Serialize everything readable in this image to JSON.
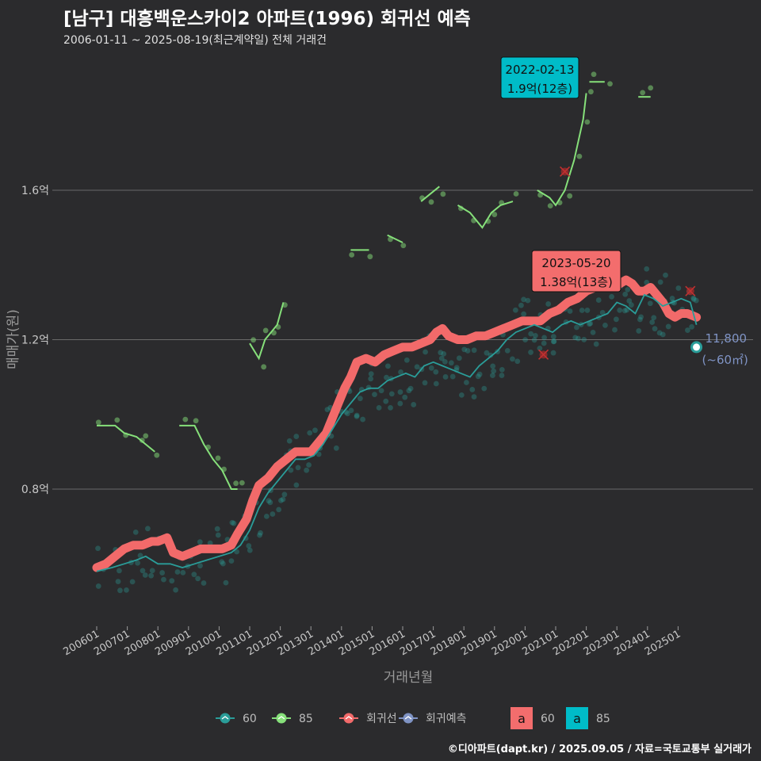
{
  "header": {
    "title": "[남구] 대흥백운스카이2 아파트(1996) 회귀선 예측",
    "subtitle": "2006-01-11 ~ 2025-08-19(최근계약일) 전체 거래건"
  },
  "footer": {
    "credit": "©디아파트(dapt.kr) / 2025.09.05 / 자료=국토교통부 실거래가"
  },
  "colors": {
    "s60": "#2a9d99",
    "s85": "#86e07a",
    "regression": "#f26a6a",
    "forecast": "#7f93c4",
    "box85": "#00bcc8",
    "box60": "#f36d6d"
  },
  "chart_data": {
    "type": "line",
    "title": "[남구] 대흥백운스카이2 아파트(1996) 회귀선 예측",
    "xlabel": "거래년월",
    "ylabel": "매매가(원)",
    "x_range": [
      2006.0,
      2025.9
    ],
    "ylim": [
      0.48,
      1.86
    ],
    "y_ticks": [
      {
        "v": 0.8,
        "label": "0.8억"
      },
      {
        "v": 1.2,
        "label": "1.2억"
      },
      {
        "v": 1.6,
        "label": "1.6억"
      }
    ],
    "x_ticks": [
      {
        "v": 2006.0,
        "label": "200601"
      },
      {
        "v": 2007.0,
        "label": "200701"
      },
      {
        "v": 2008.0,
        "label": "200801"
      },
      {
        "v": 2009.0,
        "label": "200901"
      },
      {
        "v": 2010.0,
        "label": "201001"
      },
      {
        "v": 2011.0,
        "label": "201101"
      },
      {
        "v": 2012.0,
        "label": "201201"
      },
      {
        "v": 2013.0,
        "label": "201301"
      },
      {
        "v": 2014.0,
        "label": "201401"
      },
      {
        "v": 2015.0,
        "label": "201501"
      },
      {
        "v": 2016.0,
        "label": "201601"
      },
      {
        "v": 2017.0,
        "label": "201701"
      },
      {
        "v": 2018.0,
        "label": "201801"
      },
      {
        "v": 2019.0,
        "label": "201901"
      },
      {
        "v": 2020.0,
        "label": "202001"
      },
      {
        "v": 2021.0,
        "label": "202101"
      },
      {
        "v": 2022.0,
        "label": "202201"
      },
      {
        "v": 2023.0,
        "label": "202301"
      },
      {
        "v": 2024.0,
        "label": "202401"
      },
      {
        "v": 2025.0,
        "label": "202501"
      }
    ],
    "series": [
      {
        "name": "회귀선",
        "unit": "억",
        "points": [
          [
            2006.0,
            0.59
          ],
          [
            2006.3,
            0.6
          ],
          [
            2006.6,
            0.62
          ],
          [
            2006.9,
            0.64
          ],
          [
            2007.2,
            0.65
          ],
          [
            2007.5,
            0.65
          ],
          [
            2007.8,
            0.66
          ],
          [
            2008.0,
            0.66
          ],
          [
            2008.3,
            0.67
          ],
          [
            2008.5,
            0.63
          ],
          [
            2008.8,
            0.62
          ],
          [
            2009.1,
            0.63
          ],
          [
            2009.4,
            0.64
          ],
          [
            2009.8,
            0.64
          ],
          [
            2010.1,
            0.64
          ],
          [
            2010.4,
            0.65
          ],
          [
            2010.6,
            0.68
          ],
          [
            2010.9,
            0.72
          ],
          [
            2011.1,
            0.77
          ],
          [
            2011.3,
            0.81
          ],
          [
            2011.6,
            0.83
          ],
          [
            2011.9,
            0.86
          ],
          [
            2012.2,
            0.88
          ],
          [
            2012.5,
            0.9
          ],
          [
            2012.8,
            0.9
          ],
          [
            2013.0,
            0.9
          ],
          [
            2013.2,
            0.92
          ],
          [
            2013.5,
            0.95
          ],
          [
            2013.7,
            0.99
          ],
          [
            2013.9,
            1.03
          ],
          [
            2014.1,
            1.07
          ],
          [
            2014.3,
            1.1
          ],
          [
            2014.5,
            1.14
          ],
          [
            2014.8,
            1.15
          ],
          [
            2015.1,
            1.14
          ],
          [
            2015.4,
            1.16
          ],
          [
            2015.7,
            1.17
          ],
          [
            2016.0,
            1.18
          ],
          [
            2016.3,
            1.18
          ],
          [
            2016.6,
            1.19
          ],
          [
            2016.9,
            1.2
          ],
          [
            2017.1,
            1.22
          ],
          [
            2017.3,
            1.23
          ],
          [
            2017.5,
            1.21
          ],
          [
            2017.8,
            1.2
          ],
          [
            2018.1,
            1.2
          ],
          [
            2018.4,
            1.21
          ],
          [
            2018.7,
            1.21
          ],
          [
            2019.0,
            1.22
          ],
          [
            2019.3,
            1.23
          ],
          [
            2019.6,
            1.24
          ],
          [
            2019.9,
            1.25
          ],
          [
            2020.2,
            1.25
          ],
          [
            2020.5,
            1.25
          ],
          [
            2020.8,
            1.27
          ],
          [
            2021.1,
            1.28
          ],
          [
            2021.4,
            1.3
          ],
          [
            2021.7,
            1.31
          ],
          [
            2022.0,
            1.33
          ],
          [
            2022.3,
            1.34
          ],
          [
            2022.6,
            1.35
          ],
          [
            2022.9,
            1.34
          ],
          [
            2023.1,
            1.35
          ],
          [
            2023.3,
            1.36
          ],
          [
            2023.5,
            1.35
          ],
          [
            2023.7,
            1.33
          ],
          [
            2023.9,
            1.33
          ],
          [
            2024.1,
            1.34
          ],
          [
            2024.3,
            1.32
          ],
          [
            2024.5,
            1.3
          ],
          [
            2024.7,
            1.27
          ],
          [
            2024.9,
            1.26
          ],
          [
            2025.1,
            1.27
          ],
          [
            2025.3,
            1.27
          ],
          [
            2025.6,
            1.26
          ]
        ]
      },
      {
        "name": "60",
        "unit": "억",
        "points": [
          [
            2006.0,
            0.58
          ],
          [
            2006.5,
            0.59
          ],
          [
            2006.9,
            0.6
          ],
          [
            2007.3,
            0.61
          ],
          [
            2007.6,
            0.62
          ],
          [
            2008.0,
            0.6
          ],
          [
            2008.4,
            0.6
          ],
          [
            2008.8,
            0.59
          ],
          [
            2009.2,
            0.6
          ],
          [
            2009.6,
            0.61
          ],
          [
            2010.0,
            0.62
          ],
          [
            2010.4,
            0.63
          ],
          [
            2010.7,
            0.65
          ],
          [
            2011.0,
            0.69
          ],
          [
            2011.3,
            0.75
          ],
          [
            2011.6,
            0.79
          ],
          [
            2011.9,
            0.82
          ],
          [
            2012.2,
            0.85
          ],
          [
            2012.5,
            0.88
          ],
          [
            2012.8,
            0.88
          ],
          [
            2013.1,
            0.89
          ],
          [
            2013.4,
            0.92
          ],
          [
            2013.7,
            0.96
          ],
          [
            2014.0,
            1.0
          ],
          [
            2014.3,
            1.03
          ],
          [
            2014.6,
            1.06
          ],
          [
            2014.9,
            1.07
          ],
          [
            2015.2,
            1.07
          ],
          [
            2015.5,
            1.09
          ],
          [
            2015.8,
            1.1
          ],
          [
            2016.1,
            1.11
          ],
          [
            2016.4,
            1.1
          ],
          [
            2016.7,
            1.13
          ],
          [
            2017.0,
            1.14
          ],
          [
            2017.3,
            1.13
          ],
          [
            2017.6,
            1.12
          ],
          [
            2017.9,
            1.11
          ],
          [
            2018.2,
            1.1
          ],
          [
            2018.5,
            1.13
          ],
          [
            2018.8,
            1.15
          ],
          [
            2019.1,
            1.17
          ],
          [
            2019.4,
            1.2
          ],
          [
            2019.7,
            1.22
          ],
          [
            2020.0,
            1.23
          ],
          [
            2020.3,
            1.24
          ],
          [
            2020.6,
            1.23
          ],
          [
            2020.9,
            1.22
          ],
          [
            2021.2,
            1.24
          ],
          [
            2021.5,
            1.25
          ],
          [
            2021.8,
            1.24
          ],
          [
            2022.1,
            1.25
          ],
          [
            2022.4,
            1.26
          ],
          [
            2022.7,
            1.27
          ],
          [
            2023.0,
            1.3
          ],
          [
            2023.3,
            1.29
          ],
          [
            2023.6,
            1.27
          ],
          [
            2023.9,
            1.32
          ],
          [
            2024.2,
            1.31
          ],
          [
            2024.5,
            1.29
          ],
          [
            2024.8,
            1.3
          ],
          [
            2025.1,
            1.31
          ],
          [
            2025.4,
            1.3
          ],
          [
            2025.6,
            1.24
          ]
        ]
      },
      {
        "name": "85",
        "unit": "억",
        "segments": [
          [
            [
              2006.0,
              0.97
            ],
            [
              2006.6,
              0.97
            ],
            [
              2006.9,
              0.95
            ],
            [
              2007.3,
              0.94
            ],
            [
              2007.6,
              0.92
            ],
            [
              2007.9,
              0.9
            ]
          ],
          [
            [
              2008.7,
              0.97
            ],
            [
              2009.2,
              0.97
            ],
            [
              2009.5,
              0.92
            ],
            [
              2009.8,
              0.88
            ],
            [
              2010.1,
              0.85
            ],
            [
              2010.4,
              0.8
            ],
            [
              2010.6,
              0.8
            ]
          ],
          [
            [
              2011.0,
              1.19
            ],
            [
              2011.3,
              1.15
            ],
            [
              2011.5,
              1.2
            ],
            [
              2011.7,
              1.22
            ],
            [
              2011.9,
              1.24
            ],
            [
              2012.1,
              1.3
            ]
          ],
          [
            [
              2014.3,
              1.44
            ],
            [
              2014.9,
              1.44
            ]
          ],
          [
            [
              2015.5,
              1.48
            ],
            [
              2016.0,
              1.46
            ]
          ],
          [
            [
              2016.6,
              1.57
            ],
            [
              2016.9,
              1.59
            ],
            [
              2017.2,
              1.61
            ]
          ],
          [
            [
              2017.8,
              1.56
            ],
            [
              2018.2,
              1.54
            ],
            [
              2018.6,
              1.5
            ],
            [
              2018.9,
              1.54
            ],
            [
              2019.2,
              1.56
            ],
            [
              2019.6,
              1.57
            ]
          ],
          [
            [
              2020.4,
              1.6
            ],
            [
              2020.8,
              1.58
            ],
            [
              2021.0,
              1.56
            ],
            [
              2021.3,
              1.6
            ],
            [
              2021.6,
              1.68
            ],
            [
              2021.9,
              1.79
            ],
            [
              2022.0,
              1.86
            ]
          ],
          [
            [
              2022.1,
              1.89
            ],
            [
              2022.6,
              1.89
            ]
          ],
          [
            [
              2023.7,
              1.85
            ],
            [
              2024.1,
              1.85
            ]
          ]
        ]
      },
      {
        "name": "회귀예측",
        "unit": "억",
        "points": [
          [
            2025.6,
            1.18
          ]
        ]
      }
    ],
    "annotations": [
      {
        "kind": "max85",
        "date": "2022-02-13",
        "value_label": "1.9억(12층)",
        "x": 2022.12,
        "y": 1.9
      },
      {
        "kind": "max60",
        "date": "2023-05-20",
        "value_label": "1.38억(13층)",
        "x": 2023.38,
        "y": 1.38
      },
      {
        "kind": "forecast",
        "value": "11,800",
        "area": "(~60㎡)",
        "x": 2025.6,
        "y": 1.18
      }
    ],
    "outliers": [
      [
        2021.3,
        1.65
      ],
      [
        2020.6,
        1.16
      ],
      [
        2025.4,
        1.33
      ]
    ]
  },
  "legend": {
    "items": [
      {
        "label": "60",
        "color": "#2a9d99"
      },
      {
        "label": "85",
        "color": "#86e07a"
      },
      {
        "label": "회귀선",
        "color": "#f26a6a"
      },
      {
        "label": "회귀예측",
        "color": "#7f93c4"
      }
    ],
    "boxes": [
      {
        "glyph": "a",
        "label": "60",
        "color": "#f36d6d"
      },
      {
        "glyph": "a",
        "label": "85",
        "color": "#00bcc8"
      }
    ]
  }
}
